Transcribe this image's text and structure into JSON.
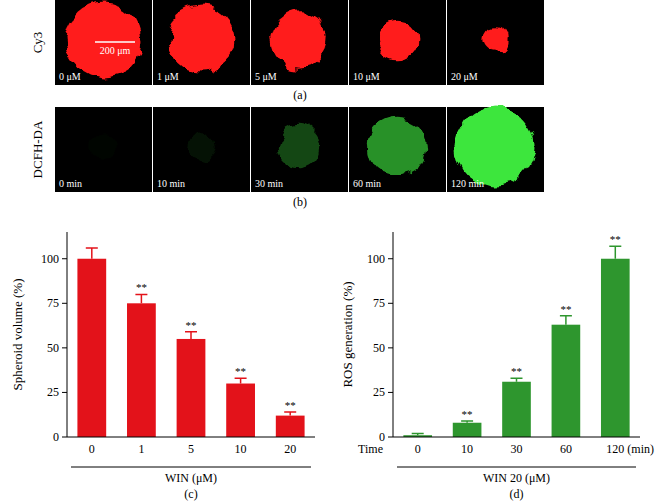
{
  "image_panels": [
    {
      "panel_label": "(a)",
      "channel": "Cy3",
      "scale_bar": "200 μm",
      "frame_labels": [
        "0 μM",
        "1 μM",
        "5 μM",
        "10 μM",
        "20 μM"
      ],
      "color": "#ff1a1a"
    },
    {
      "panel_label": "(b)",
      "channel": "DCFH-DA",
      "frame_labels": [
        "0 min",
        "10 min",
        "30 min",
        "60 min",
        "120 min"
      ],
      "color": "#3ee63e"
    }
  ],
  "chart_data": [
    {
      "type": "bar",
      "panel_label": "(c)",
      "ylabel": "Spheroid volume (%)",
      "xlabel": "WIN (μM)",
      "categories": [
        "0",
        "1",
        "5",
        "10",
        "20"
      ],
      "values": [
        100,
        75,
        55,
        30,
        12
      ],
      "errors": [
        6,
        5,
        4,
        3,
        2
      ],
      "significance": [
        null,
        "**",
        "**",
        "**",
        "**"
      ],
      "color": "#e3121a",
      "ylim": [
        0,
        115
      ],
      "yticks": [
        0,
        25,
        50,
        75,
        100
      ],
      "grid": false
    },
    {
      "type": "bar",
      "panel_label": "(d)",
      "ylabel": "ROS generation (%)",
      "xlabel": "WIN 20 (μM)",
      "x_prefix_label": "Time",
      "x_unit_label": "(min)",
      "categories": [
        "0",
        "10",
        "30",
        "60",
        "120"
      ],
      "values": [
        1,
        8,
        31,
        63,
        100
      ],
      "errors": [
        1,
        1,
        2,
        5,
        7
      ],
      "significance": [
        null,
        "**",
        "**",
        "**",
        "**"
      ],
      "color": "#2e962e",
      "ylim": [
        0,
        115
      ],
      "yticks": [
        0,
        25,
        50,
        75,
        100
      ],
      "grid": false
    }
  ]
}
